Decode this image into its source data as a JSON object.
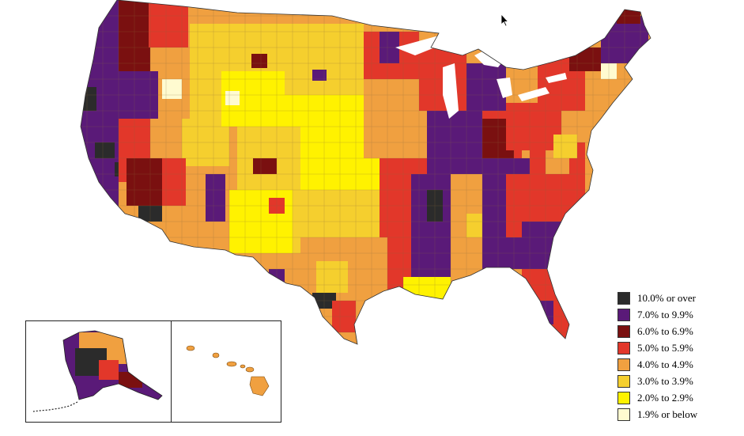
{
  "legend": {
    "items": [
      {
        "label": "10.0% or over",
        "color": "#2b2b2b"
      },
      {
        "label": "7.0% to 9.9%",
        "color": "#5a1a78"
      },
      {
        "label": "6.0% to 6.9%",
        "color": "#7a1010"
      },
      {
        "label": "5.0% to 5.9%",
        "color": "#e2372a"
      },
      {
        "label": "4.0% to 4.9%",
        "color": "#f0a040"
      },
      {
        "label": "3.0% to 3.9%",
        "color": "#f5cf2e"
      },
      {
        "label": "2.0% to 2.9%",
        "color": "#fff200"
      },
      {
        "label": "1.9% or below",
        "color": "#fffbd0"
      }
    ]
  },
  "icons": {
    "cursor": "arrow-cursor-icon"
  }
}
